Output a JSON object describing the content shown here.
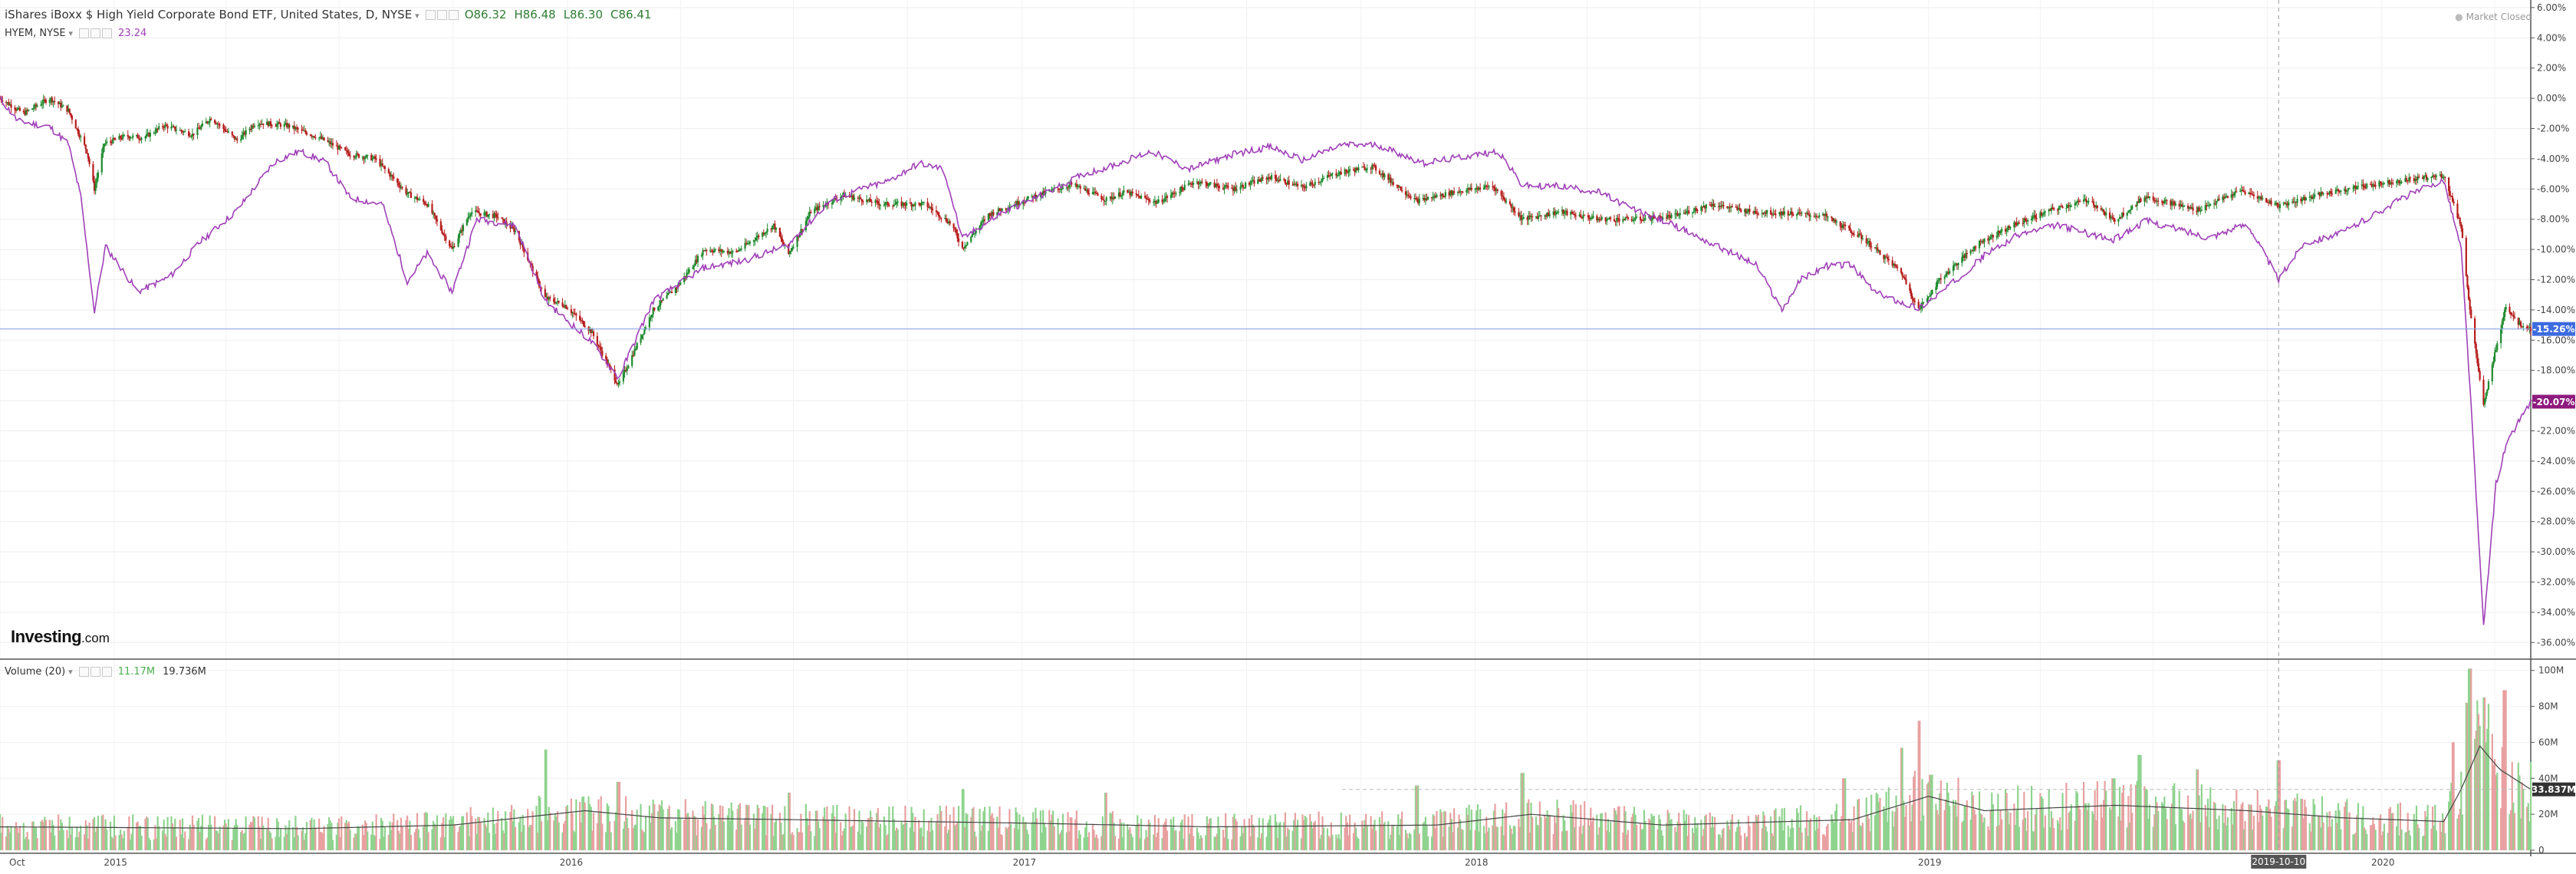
{
  "header": {
    "title": "iShares iBoxx $ High Yield Corporate Bond ETF, United States, D, NYSE",
    "open": "O86.32",
    "high": "H86.48",
    "low": "L86.30",
    "close": "C86.41",
    "compare_symbol": "HYEM, NYSE",
    "compare_value": "23.24",
    "market_status": "Market Closed"
  },
  "volume_panel": {
    "label": "Volume (20)",
    "volume_value": "11.17M",
    "ma_value": "19.736M"
  },
  "brand": {
    "bold": "Investing",
    "suffix": ".com"
  },
  "colors": {
    "up": "#26a69a",
    "down": "#ef5350",
    "candle_up": "#1e8b2e",
    "candle_down": "#b71c1c",
    "compare_line": "#a040b8",
    "hyg_badge": "#3d6ce0",
    "hyem_badge": "#8e1a7e",
    "volume_up": "#8fd38f",
    "volume_down": "#e8a0a0"
  },
  "chart_data": {
    "type": "line",
    "title": "iShares iBoxx $ High Yield Corporate Bond ETF, United States, D, NYSE",
    "x_ticks": [
      "Oct",
      "2015",
      "2016",
      "2017",
      "2018",
      "2019",
      "2019-10-10",
      "2020"
    ],
    "y_ticks": [
      "6.00%",
      "4.00%",
      "2.00%",
      "0.00%",
      "-2.00%",
      "-4.00%",
      "-6.00%",
      "-8.00%",
      "-10.00%",
      "-12.00%",
      "-14.00%",
      "-16.00%",
      "-18.00%",
      "-20.00%",
      "-22.00%",
      "-24.00%",
      "-26.00%",
      "-28.00%",
      "-30.00%",
      "-32.00%",
      "-34.00%",
      "-36.00%"
    ],
    "ylim": [
      -37,
      6.5
    ],
    "x_range": [
      "2014-10-01",
      "2020-04-30"
    ],
    "last_labels": {
      "hyg": "-15.26%",
      "hyem": "-20.07%"
    },
    "series": [
      {
        "name": "HYG",
        "style": "candlestick",
        "points": [
          [
            "2014-10-01",
            0.0
          ],
          [
            "2014-10-20",
            -1.0
          ],
          [
            "2014-11-10",
            0.0
          ],
          [
            "2014-11-25",
            -0.8
          ],
          [
            "2014-12-10",
            -3.5
          ],
          [
            "2014-12-16",
            -6.0
          ],
          [
            "2014-12-24",
            -3.0
          ],
          [
            "2015-01-10",
            -2.5
          ],
          [
            "2015-01-25",
            -2.6
          ],
          [
            "2015-02-10",
            -1.8
          ],
          [
            "2015-03-05",
            -2.4
          ],
          [
            "2015-03-20",
            -1.3
          ],
          [
            "2015-04-10",
            -2.8
          ],
          [
            "2015-04-25",
            -1.6
          ],
          [
            "2015-05-20",
            -1.8
          ],
          [
            "2015-06-15",
            -2.6
          ],
          [
            "2015-07-10",
            -3.7
          ],
          [
            "2015-07-30",
            -4.0
          ],
          [
            "2015-08-25",
            -6.3
          ],
          [
            "2015-09-10",
            -7.0
          ],
          [
            "2015-09-30",
            -10.0
          ],
          [
            "2015-10-15",
            -7.5
          ],
          [
            "2015-11-05",
            -7.8
          ],
          [
            "2015-11-20",
            -8.8
          ],
          [
            "2015-12-14",
            -13.2
          ],
          [
            "2015-12-30",
            -13.7
          ],
          [
            "2016-01-20",
            -15.4
          ],
          [
            "2016-02-11",
            -19.0
          ],
          [
            "2016-02-25",
            -16.5
          ],
          [
            "2016-03-10",
            -14.0
          ],
          [
            "2016-03-30",
            -12.4
          ],
          [
            "2016-04-20",
            -10.0
          ],
          [
            "2016-05-15",
            -10.2
          ],
          [
            "2016-06-15",
            -8.4
          ],
          [
            "2016-06-27",
            -10.3
          ],
          [
            "2016-07-15",
            -7.5
          ],
          [
            "2016-08-10",
            -6.4
          ],
          [
            "2016-09-10",
            -7.0
          ],
          [
            "2016-10-15",
            -7.0
          ],
          [
            "2016-11-05",
            -8.3
          ],
          [
            "2016-11-14",
            -9.9
          ],
          [
            "2016-12-05",
            -7.7
          ],
          [
            "2017-01-10",
            -6.5
          ],
          [
            "2017-02-10",
            -5.7
          ],
          [
            "2017-03-10",
            -6.7
          ],
          [
            "2017-03-25",
            -6.2
          ],
          [
            "2017-04-20",
            -6.9
          ],
          [
            "2017-05-20",
            -5.5
          ],
          [
            "2017-06-20",
            -6.0
          ],
          [
            "2017-07-20",
            -5.2
          ],
          [
            "2017-08-15",
            -5.9
          ],
          [
            "2017-09-10",
            -5.0
          ],
          [
            "2017-10-10",
            -4.5
          ],
          [
            "2017-11-15",
            -6.8
          ],
          [
            "2017-12-15",
            -6.2
          ],
          [
            "2018-01-15",
            -5.8
          ],
          [
            "2018-02-08",
            -8.0
          ],
          [
            "2018-03-10",
            -7.5
          ],
          [
            "2018-04-10",
            -8.0
          ],
          [
            "2018-05-10",
            -8.0
          ],
          [
            "2018-06-10",
            -7.8
          ],
          [
            "2018-07-10",
            -7.0
          ],
          [
            "2018-08-10",
            -7.5
          ],
          [
            "2018-09-10",
            -7.6
          ],
          [
            "2018-10-10",
            -7.8
          ],
          [
            "2018-11-10",
            -9.3
          ],
          [
            "2018-12-10",
            -11.5
          ],
          [
            "2018-12-24",
            -14.0
          ],
          [
            "2019-01-10",
            -12.0
          ],
          [
            "2019-02-10",
            -9.6
          ],
          [
            "2019-03-10",
            -8.4
          ],
          [
            "2019-04-10",
            -7.4
          ],
          [
            "2019-05-10",
            -6.7
          ],
          [
            "2019-05-30",
            -8.1
          ],
          [
            "2019-06-25",
            -6.5
          ],
          [
            "2019-08-05",
            -7.4
          ],
          [
            "2019-09-10",
            -6.1
          ],
          [
            "2019-10-10",
            -7.1
          ],
          [
            "2019-11-10",
            -6.4
          ],
          [
            "2019-12-10",
            -5.9
          ],
          [
            "2020-01-10",
            -5.5
          ],
          [
            "2020-02-20",
            -5.1
          ],
          [
            "2020-03-05",
            -8.5
          ],
          [
            "2020-03-12",
            -14.0
          ],
          [
            "2020-03-23",
            -20.4
          ],
          [
            "2020-04-02",
            -16.5
          ],
          [
            "2020-04-10",
            -13.7
          ],
          [
            "2020-04-20",
            -14.9
          ],
          [
            "2020-04-30",
            -15.26
          ]
        ]
      },
      {
        "name": "HYEM",
        "style": "line",
        "points": [
          [
            "2014-10-01",
            0.0
          ],
          [
            "2014-10-15",
            -1.5
          ],
          [
            "2014-11-10",
            -1.9
          ],
          [
            "2014-11-25",
            -3.0
          ],
          [
            "2014-12-05",
            -6.5
          ],
          [
            "2014-12-16",
            -14.1
          ],
          [
            "2014-12-25",
            -9.8
          ],
          [
            "2015-01-20",
            -12.8
          ],
          [
            "2015-02-15",
            -11.8
          ],
          [
            "2015-03-10",
            -9.6
          ],
          [
            "2015-04-10",
            -7.4
          ],
          [
            "2015-05-10",
            -4.2
          ],
          [
            "2015-05-30",
            -3.5
          ],
          [
            "2015-06-20",
            -4.2
          ],
          [
            "2015-07-10",
            -6.6
          ],
          [
            "2015-08-05",
            -7.0
          ],
          [
            "2015-08-25",
            -12.1
          ],
          [
            "2015-09-10",
            -10.3
          ],
          [
            "2015-09-30",
            -12.8
          ],
          [
            "2015-10-20",
            -8.0
          ],
          [
            "2015-11-20",
            -8.4
          ],
          [
            "2015-12-14",
            -13.4
          ],
          [
            "2016-01-20",
            -16.1
          ],
          [
            "2016-02-11",
            -18.5
          ],
          [
            "2016-03-10",
            -13.4
          ],
          [
            "2016-04-20",
            -11.2
          ],
          [
            "2016-05-20",
            -10.8
          ],
          [
            "2016-06-27",
            -9.7
          ],
          [
            "2016-07-30",
            -6.8
          ],
          [
            "2016-08-25",
            -6.0
          ],
          [
            "2016-09-15",
            -5.5
          ],
          [
            "2016-10-10",
            -4.3
          ],
          [
            "2016-10-30",
            -4.7
          ],
          [
            "2016-11-14",
            -9.3
          ],
          [
            "2016-12-15",
            -7.6
          ],
          [
            "2017-01-20",
            -6.3
          ],
          [
            "2017-02-20",
            -5.0
          ],
          [
            "2017-03-10",
            -4.6
          ],
          [
            "2017-04-15",
            -3.5
          ],
          [
            "2017-05-15",
            -4.7
          ],
          [
            "2017-06-20",
            -3.7
          ],
          [
            "2017-07-20",
            -3.2
          ],
          [
            "2017-08-15",
            -4.1
          ],
          [
            "2017-09-15",
            -3.1
          ],
          [
            "2017-10-15",
            -3.1
          ],
          [
            "2017-11-20",
            -4.3
          ],
          [
            "2017-12-20",
            -3.9
          ],
          [
            "2018-01-20",
            -3.5
          ],
          [
            "2018-02-08",
            -5.8
          ],
          [
            "2018-03-10",
            -5.8
          ],
          [
            "2018-04-10",
            -6.2
          ],
          [
            "2018-05-10",
            -7.4
          ],
          [
            "2018-06-10",
            -8.4
          ],
          [
            "2018-07-10",
            -9.6
          ],
          [
            "2018-08-15",
            -11.0
          ],
          [
            "2018-09-05",
            -14.0
          ],
          [
            "2018-09-20",
            -12.0
          ],
          [
            "2018-10-10",
            -11.1
          ],
          [
            "2018-10-30",
            -11.0
          ],
          [
            "2018-11-20",
            -12.9
          ],
          [
            "2018-12-24",
            -13.9
          ],
          [
            "2019-01-15",
            -12.6
          ],
          [
            "2019-02-15",
            -10.4
          ],
          [
            "2019-03-15",
            -9.0
          ],
          [
            "2019-04-15",
            -8.4
          ],
          [
            "2019-05-30",
            -9.4
          ],
          [
            "2019-06-25",
            -8.1
          ],
          [
            "2019-08-15",
            -9.2
          ],
          [
            "2019-09-15",
            -8.3
          ],
          [
            "2019-10-10",
            -12.0
          ],
          [
            "2019-10-30",
            -9.6
          ],
          [
            "2019-11-30",
            -8.9
          ],
          [
            "2019-12-30",
            -7.5
          ],
          [
            "2020-01-20",
            -6.5
          ],
          [
            "2020-02-20",
            -5.4
          ],
          [
            "2020-03-05",
            -10.0
          ],
          [
            "2020-03-12",
            -19.0
          ],
          [
            "2020-03-23",
            -35.0
          ],
          [
            "2020-04-02",
            -25.5
          ],
          [
            "2020-04-10",
            -23.0
          ],
          [
            "2020-04-20",
            -21.4
          ],
          [
            "2020-04-30",
            -20.07
          ]
        ]
      }
    ],
    "volume": {
      "y_ticks": [
        "100M",
        "80M",
        "60M",
        "40M",
        "20M",
        "0"
      ],
      "ylim": [
        0,
        105
      ],
      "unit": "M",
      "last_label": "33.837M",
      "baseline": 12,
      "spikes": [
        [
          "2015-12-14",
          56
        ],
        [
          "2016-02-11",
          38
        ],
        [
          "2016-06-27",
          32
        ],
        [
          "2016-11-14",
          34
        ],
        [
          "2017-03-10",
          32
        ],
        [
          "2017-11-15",
          36
        ],
        [
          "2018-02-08",
          43
        ],
        [
          "2018-10-25",
          40
        ],
        [
          "2018-12-10",
          57
        ],
        [
          "2018-12-24",
          72
        ],
        [
          "2019-01-03",
          42
        ],
        [
          "2019-05-30",
          40
        ],
        [
          "2019-06-20",
          53
        ],
        [
          "2019-08-05",
          45
        ],
        [
          "2019-10-10",
          50
        ],
        [
          "2020-02-28",
          60
        ],
        [
          "2020-03-09",
          82
        ],
        [
          "2020-03-12",
          101
        ],
        [
          "2020-03-23",
          85
        ],
        [
          "2020-04-09",
          89
        ]
      ],
      "ma20": [
        [
          "2014-10-01",
          13
        ],
        [
          "2015-06-01",
          12
        ],
        [
          "2015-10-01",
          14
        ],
        [
          "2016-01-15",
          22
        ],
        [
          "2016-03-15",
          18
        ],
        [
          "2016-06-30",
          17
        ],
        [
          "2017-01-10",
          15
        ],
        [
          "2017-06-01",
          13
        ],
        [
          "2017-12-01",
          14
        ],
        [
          "2018-02-15",
          20
        ],
        [
          "2018-06-01",
          14
        ],
        [
          "2018-11-01",
          17
        ],
        [
          "2019-01-01",
          30
        ],
        [
          "2019-02-15",
          22
        ],
        [
          "2019-06-01",
          25
        ],
        [
          "2019-09-15",
          22
        ],
        [
          "2019-12-01",
          18
        ],
        [
          "2020-02-20",
          16
        ],
        [
          "2020-03-05",
          34
        ],
        [
          "2020-03-20",
          58
        ],
        [
          "2020-04-05",
          45
        ],
        [
          "2020-04-30",
          33.837
        ]
      ]
    }
  }
}
